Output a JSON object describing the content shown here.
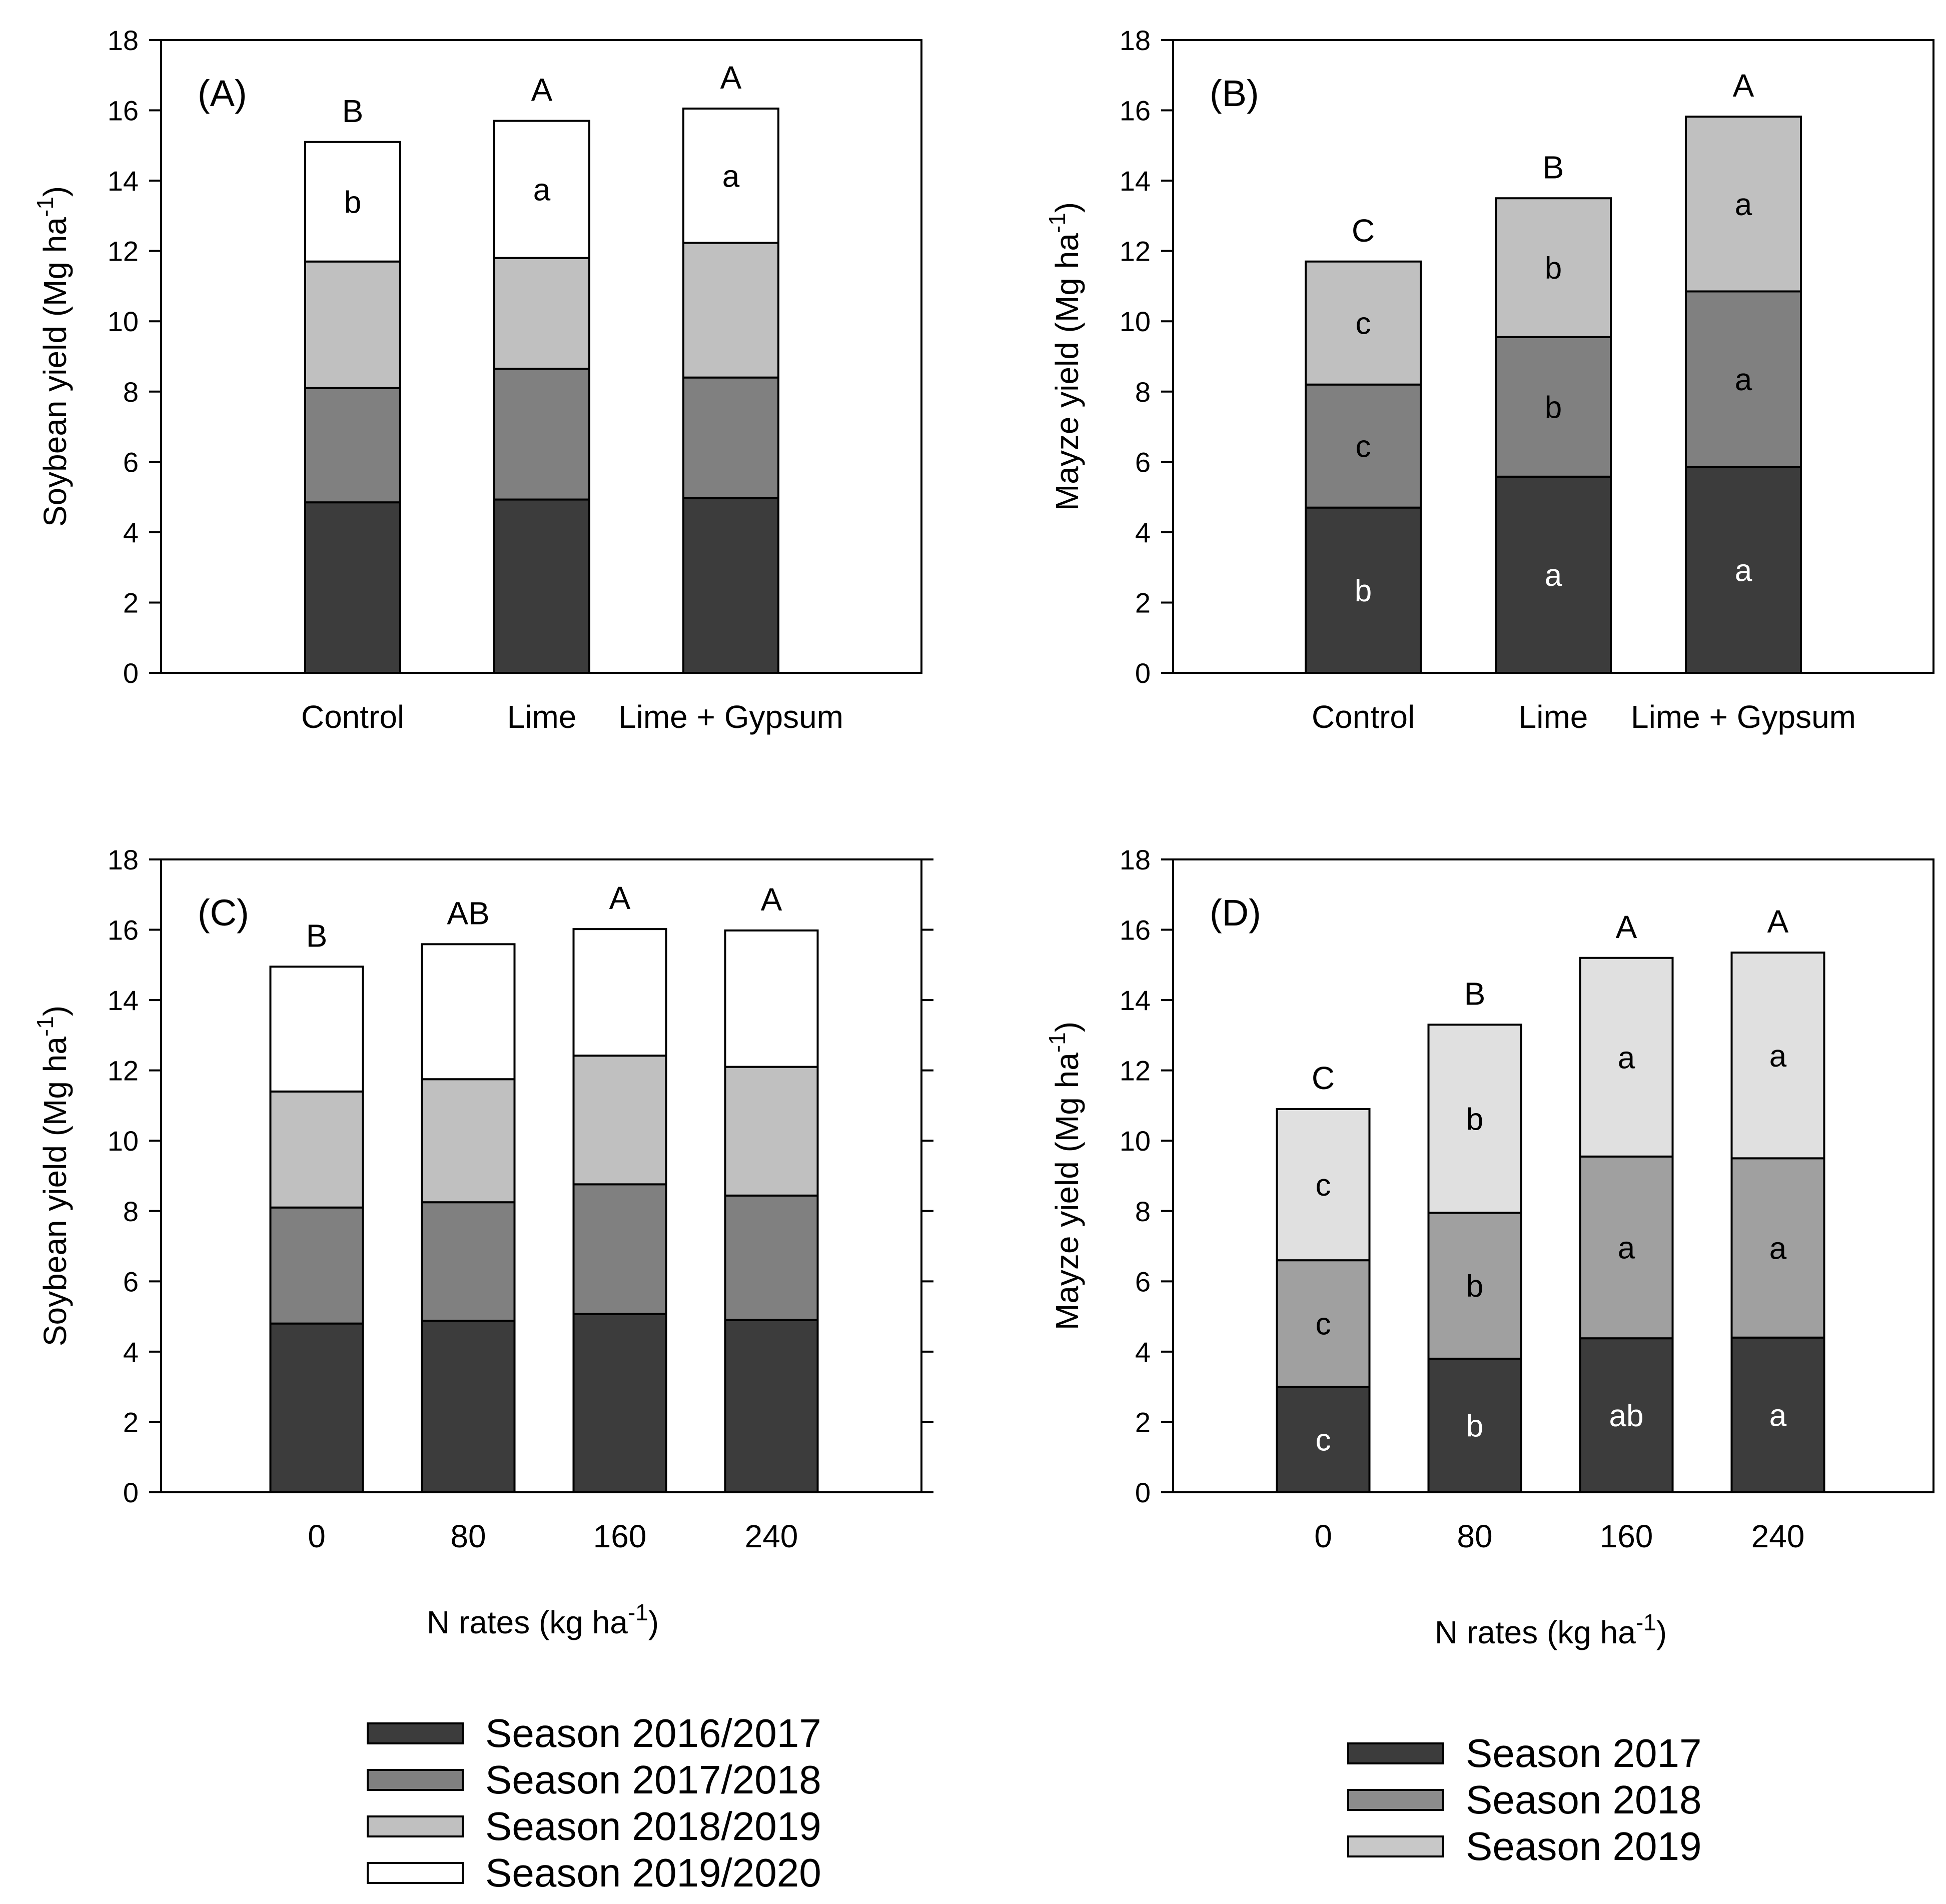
{
  "legend_soybean": [
    {
      "label": "Season 2016/2017",
      "color": "#3c3c3c"
    },
    {
      "label": "Season 2017/2018",
      "color": "#808080"
    },
    {
      "label": "Season 2018/2019",
      "color": "#c0c0c0"
    },
    {
      "label": "Season 2019/2020",
      "color": "#ffffff"
    }
  ],
  "legend_maize": [
    {
      "label": "Season 2017",
      "color": "#3c3c3c"
    },
    {
      "label": "Season 2018",
      "color": "#8c8c8c"
    },
    {
      "label": "Season 2019",
      "color": "#c8c8c8"
    }
  ],
  "chart_data": [
    {
      "id": "A",
      "panel_label": "(A)",
      "type": "stacked-bar",
      "ylabel": "Soybean yield (Mg ha",
      "ylabel_sup": "-1",
      "ylabel_end": ")",
      "xlabel": "",
      "xlabel_sup": "",
      "xlabel_end": "",
      "ylim": [
        0,
        18
      ],
      "yticks": [
        0,
        2,
        4,
        6,
        8,
        10,
        12,
        14,
        16,
        18
      ],
      "categories": [
        "Control",
        "Lime",
        "Lime + Gypsum"
      ],
      "colors": [
        "#3c3c3c",
        "#808080",
        "#c0c0c0",
        "#ffffff"
      ],
      "series": [
        {
          "name": "Season 2016/2017",
          "values": [
            4.85,
            4.93,
            4.97
          ]
        },
        {
          "name": "Season 2017/2018",
          "values": [
            3.25,
            3.72,
            3.43
          ]
        },
        {
          "name": "Season 2018/2019",
          "values": [
            3.6,
            3.15,
            3.83
          ]
        },
        {
          "name": "Season 2019/2020",
          "values": [
            3.4,
            3.9,
            3.82
          ]
        }
      ],
      "segment_labels": [
        [
          null,
          null,
          null
        ],
        [
          null,
          null,
          null
        ],
        [
          null,
          null,
          null
        ],
        [
          "b",
          "a",
          "a"
        ]
      ],
      "total_labels": [
        "B",
        "A",
        "A"
      ]
    },
    {
      "id": "B",
      "panel_label": "(B)",
      "type": "stacked-bar",
      "ylabel": "Mayze yield (Mg ha",
      "ylabel_sup": "-1",
      "ylabel_end": ")",
      "xlabel": "",
      "xlabel_sup": "",
      "xlabel_end": "",
      "ylim": [
        0,
        18
      ],
      "yticks": [
        0,
        2,
        4,
        6,
        8,
        10,
        12,
        14,
        16,
        18
      ],
      "categories": [
        "Control",
        "Lime",
        "Lime + Gypsum"
      ],
      "colors": [
        "#3c3c3c",
        "#808080",
        "#c0c0c0"
      ],
      "series": [
        {
          "name": "Season 2017",
          "values": [
            4.7,
            5.58,
            5.85
          ]
        },
        {
          "name": "Season 2018",
          "values": [
            3.5,
            3.97,
            5.0
          ]
        },
        {
          "name": "Season 2019",
          "values": [
            3.5,
            3.95,
            4.97
          ]
        }
      ],
      "segment_labels": [
        [
          "b",
          "a",
          "a"
        ],
        [
          "c",
          "b",
          "a"
        ],
        [
          "c",
          "b",
          "a"
        ]
      ],
      "total_labels": [
        "C",
        "B",
        "A"
      ]
    },
    {
      "id": "C",
      "panel_label": "(C)",
      "type": "stacked-bar",
      "ylabel": "Soybean yield (Mg ha",
      "ylabel_sup": "-1",
      "ylabel_end": ")",
      "xlabel": "N rates (kg ha",
      "xlabel_sup": "-1",
      "xlabel_end": ")",
      "ylim": [
        0,
        18
      ],
      "yticks": [
        0,
        2,
        4,
        6,
        8,
        10,
        12,
        14,
        16,
        18
      ],
      "categories": [
        "0",
        "80",
        "160",
        "240"
      ],
      "colors": [
        "#3c3c3c",
        "#808080",
        "#c0c0c0",
        "#ffffff"
      ],
      "series": [
        {
          "name": "Season 2016/2017",
          "values": [
            4.8,
            4.88,
            5.07,
            4.9
          ]
        },
        {
          "name": "Season 2017/2018",
          "values": [
            3.3,
            3.37,
            3.69,
            3.54
          ]
        },
        {
          "name": "Season 2018/2019",
          "values": [
            3.3,
            3.5,
            3.66,
            3.66
          ]
        },
        {
          "name": "Season 2019/2020",
          "values": [
            3.55,
            3.84,
            3.6,
            3.88
          ]
        }
      ],
      "segment_labels": [
        [
          null,
          null,
          null,
          null
        ],
        [
          null,
          null,
          null,
          null
        ],
        [
          null,
          null,
          null,
          null
        ],
        [
          null,
          null,
          null,
          null
        ]
      ],
      "total_labels": [
        "B",
        "AB",
        "A",
        "A"
      ]
    },
    {
      "id": "D",
      "panel_label": "(D)",
      "type": "stacked-bar",
      "ylabel": "Mayze yield (Mg ha",
      "ylabel_sup": "-1",
      "ylabel_end": ")",
      "xlabel": "N rates (kg ha",
      "xlabel_sup": "-1",
      "xlabel_end": ")",
      "ylim": [
        0,
        18
      ],
      "yticks": [
        0,
        2,
        4,
        6,
        8,
        10,
        12,
        14,
        16,
        18
      ],
      "categories": [
        "0",
        "80",
        "160",
        "240"
      ],
      "colors": [
        "#3c3c3c",
        "#a0a0a0",
        "#e0e0e0"
      ],
      "series": [
        {
          "name": "Season 2017",
          "values": [
            3.0,
            3.8,
            4.38,
            4.4
          ]
        },
        {
          "name": "Season 2018",
          "values": [
            3.6,
            4.15,
            5.17,
            5.1
          ]
        },
        {
          "name": "Season 2019",
          "values": [
            4.3,
            5.35,
            5.65,
            5.85
          ]
        }
      ],
      "segment_labels": [
        [
          "c",
          "b",
          "ab",
          "a"
        ],
        [
          "c",
          "b",
          "a",
          "a"
        ],
        [
          "c",
          "b",
          "a",
          "a"
        ]
      ],
      "total_labels": [
        "C",
        "B",
        "A",
        "A"
      ]
    }
  ]
}
